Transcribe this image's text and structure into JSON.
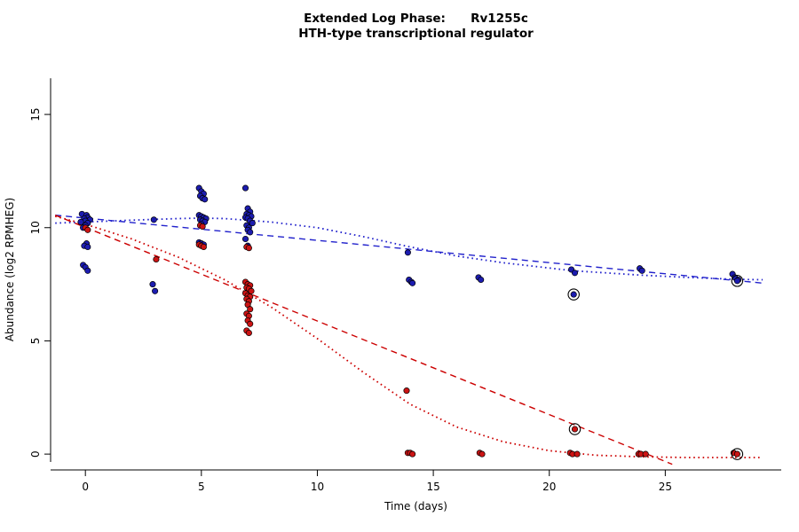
{
  "title": {
    "line1": "Extended Log Phase:      Rv1255c",
    "line2": "HTH-type transcriptional regulator"
  },
  "chart_data": {
    "type": "scatter",
    "title": "Extended Log Phase:      Rv1255c",
    "subtitle": "HTH-type transcriptional regulator",
    "xlabel": "Time  (days)",
    "ylabel": "Abundance  (log2 RPMHEG)",
    "xlim": [
      -1.5,
      30
    ],
    "ylim": [
      -0.7,
      17
    ],
    "xticks": [
      0,
      5,
      10,
      15,
      20,
      25
    ],
    "yticks": [
      0,
      5,
      10,
      15
    ],
    "grid": false,
    "legend": "none",
    "colors": {
      "blue_points": "#1c1cb0",
      "red_points": "#cc1414",
      "blue_line": "#2222cc",
      "red_line": "#cc0000",
      "point_stroke": "#000000"
    },
    "series": [
      {
        "name": "blue",
        "color": "#1c1cb0",
        "points": [
          [
            -0.15,
            10.6
          ],
          [
            0.05,
            10.55
          ],
          [
            0.1,
            10.45
          ],
          [
            -0.05,
            10.4
          ],
          [
            0.2,
            10.35
          ],
          [
            0.0,
            10.3
          ],
          [
            -0.2,
            10.25
          ],
          [
            0.1,
            10.2
          ],
          [
            0.0,
            10.1
          ],
          [
            -0.1,
            10.0
          ],
          [
            0.05,
            9.3
          ],
          [
            -0.05,
            9.2
          ],
          [
            0.1,
            9.15
          ],
          [
            -0.1,
            8.35
          ],
          [
            0.0,
            8.25
          ],
          [
            0.1,
            8.1
          ],
          [
            2.95,
            10.35
          ],
          [
            2.9,
            7.5
          ],
          [
            3.0,
            7.2
          ],
          [
            4.9,
            11.75
          ],
          [
            5.0,
            11.6
          ],
          [
            5.1,
            11.5
          ],
          [
            4.95,
            11.4
          ],
          [
            5.05,
            11.3
          ],
          [
            5.15,
            11.25
          ],
          [
            4.9,
            10.55
          ],
          [
            5.0,
            10.5
          ],
          [
            5.1,
            10.45
          ],
          [
            5.2,
            10.4
          ],
          [
            4.95,
            10.35
          ],
          [
            5.05,
            10.3
          ],
          [
            5.15,
            10.25
          ],
          [
            5.0,
            10.15
          ],
          [
            4.9,
            9.35
          ],
          [
            5.0,
            9.3
          ],
          [
            5.1,
            9.25
          ],
          [
            6.9,
            11.75
          ],
          [
            7.0,
            10.85
          ],
          [
            7.1,
            10.7
          ],
          [
            6.95,
            10.6
          ],
          [
            7.05,
            10.55
          ],
          [
            7.15,
            10.5
          ],
          [
            6.9,
            10.45
          ],
          [
            7.0,
            10.4
          ],
          [
            7.1,
            10.3
          ],
          [
            7.2,
            10.2
          ],
          [
            6.95,
            10.1
          ],
          [
            7.05,
            10.0
          ],
          [
            7.0,
            9.9
          ],
          [
            7.1,
            9.8
          ],
          [
            6.9,
            9.5
          ],
          [
            7.0,
            9.2
          ],
          [
            13.9,
            8.9
          ],
          [
            13.95,
            7.7
          ],
          [
            14.05,
            7.6
          ],
          [
            14.1,
            7.55
          ],
          [
            16.95,
            7.8
          ],
          [
            17.05,
            7.7
          ],
          [
            20.95,
            8.15
          ],
          [
            21.1,
            8.0
          ],
          [
            23.9,
            8.2
          ],
          [
            24.0,
            8.1
          ],
          [
            27.9,
            7.95
          ],
          [
            28.0,
            7.8
          ],
          [
            28.15,
            7.7
          ]
        ]
      },
      {
        "name": "red",
        "color": "#cc1414",
        "points": [
          [
            0.0,
            10.0
          ],
          [
            0.1,
            9.9
          ],
          [
            3.05,
            8.6
          ],
          [
            4.95,
            10.1
          ],
          [
            5.05,
            10.05
          ],
          [
            4.9,
            9.25
          ],
          [
            5.0,
            9.2
          ],
          [
            5.1,
            9.15
          ],
          [
            6.95,
            9.15
          ],
          [
            7.05,
            9.1
          ],
          [
            6.9,
            7.6
          ],
          [
            7.0,
            7.5
          ],
          [
            7.1,
            7.45
          ],
          [
            6.95,
            7.35
          ],
          [
            7.05,
            7.3
          ],
          [
            7.15,
            7.2
          ],
          [
            6.9,
            7.1
          ],
          [
            7.0,
            7.0
          ],
          [
            7.1,
            6.95
          ],
          [
            6.95,
            6.85
          ],
          [
            7.05,
            6.75
          ],
          [
            7.0,
            6.6
          ],
          [
            7.1,
            6.4
          ],
          [
            6.95,
            6.2
          ],
          [
            7.05,
            6.1
          ],
          [
            7.0,
            5.9
          ],
          [
            7.1,
            5.75
          ],
          [
            6.95,
            5.45
          ],
          [
            7.05,
            5.35
          ],
          [
            13.85,
            2.8
          ],
          [
            13.9,
            0.05
          ],
          [
            14.0,
            0.05
          ],
          [
            14.1,
            0.0
          ],
          [
            17.0,
            0.05
          ],
          [
            17.1,
            0.0
          ],
          [
            20.9,
            0.05
          ],
          [
            21.0,
            0.0
          ],
          [
            21.2,
            0.0
          ],
          [
            23.85,
            0.0
          ],
          [
            23.95,
            0.0
          ],
          [
            24.15,
            0.0
          ],
          [
            27.95,
            0.05
          ]
        ]
      }
    ],
    "outlined_points": [
      {
        "x": 21.05,
        "y": 7.05,
        "series": "blue"
      },
      {
        "x": 28.1,
        "y": 7.65,
        "series": "blue"
      },
      {
        "x": 21.1,
        "y": 1.1,
        "series": "red"
      },
      {
        "x": 28.1,
        "y": 0.0,
        "series": "red"
      }
    ],
    "trends": [
      {
        "name": "blue-dashed-fit",
        "color": "#2222cc",
        "style": "dashed",
        "x": [
          -1.3,
          29.2
        ],
        "y": [
          10.55,
          7.55
        ]
      },
      {
        "name": "blue-dotted-fit",
        "color": "#2222cc",
        "style": "dotted",
        "x": [
          -1.3,
          0,
          2,
          4,
          5,
          6,
          8,
          10,
          12,
          14,
          16,
          18,
          21,
          24,
          26,
          28,
          29.2
        ],
        "y": [
          10.2,
          10.25,
          10.33,
          10.4,
          10.42,
          10.4,
          10.25,
          10.0,
          9.6,
          9.15,
          8.75,
          8.45,
          8.1,
          7.9,
          7.8,
          7.72,
          7.7
        ]
      },
      {
        "name": "red-dashed-fit",
        "color": "#cc0000",
        "style": "dashed",
        "x": [
          -1.3,
          25.3
        ],
        "y": [
          10.55,
          -0.45
        ]
      },
      {
        "name": "red-dotted-fit",
        "color": "#cc0000",
        "style": "dotted",
        "x": [
          -1.3,
          0,
          2,
          4,
          6,
          8,
          10,
          12,
          14,
          16,
          18,
          20,
          22,
          24,
          26,
          28,
          29.2
        ],
        "y": [
          10.5,
          10.15,
          9.5,
          8.7,
          7.7,
          6.5,
          5.1,
          3.6,
          2.2,
          1.2,
          0.55,
          0.15,
          -0.05,
          -0.12,
          -0.15,
          -0.15,
          -0.15
        ]
      }
    ]
  }
}
